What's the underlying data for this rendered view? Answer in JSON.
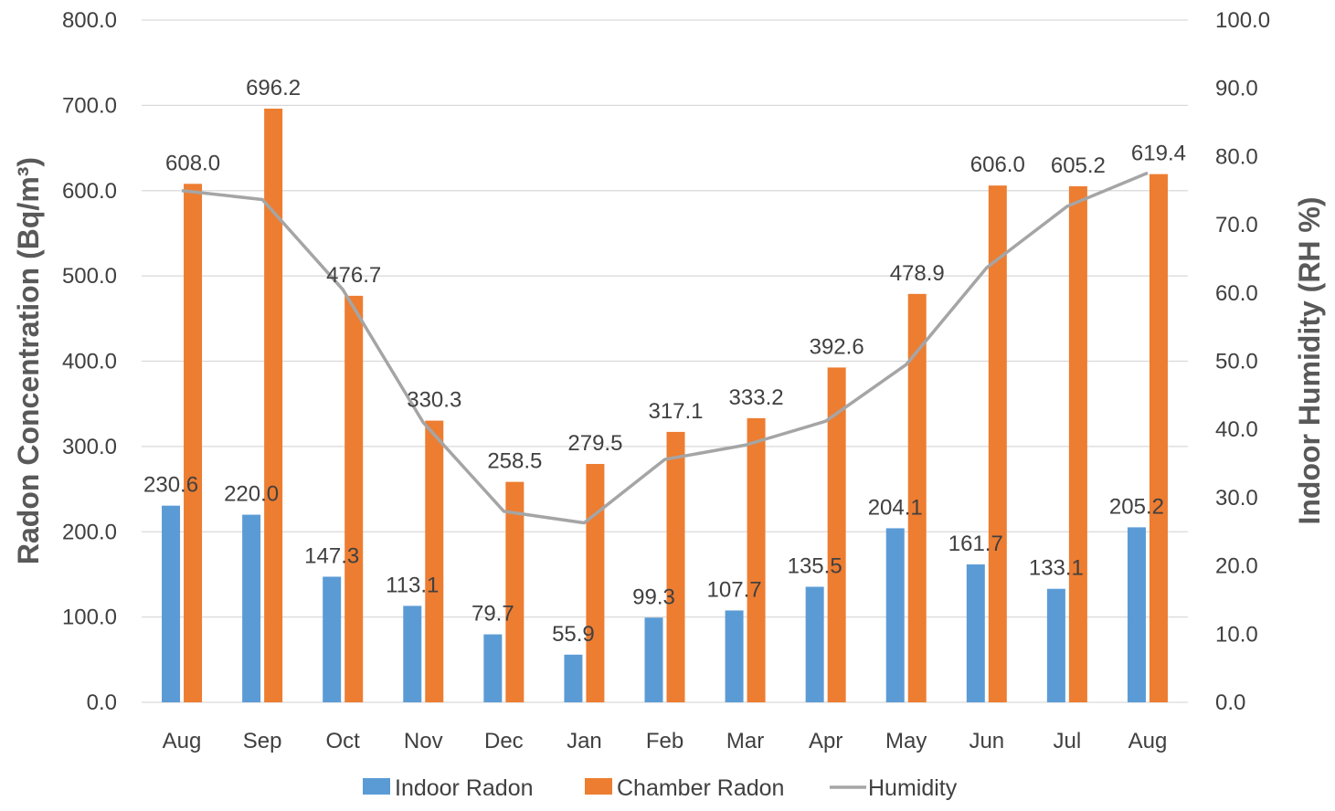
{
  "chart_data": {
    "type": "bar",
    "categories": [
      "Aug",
      "Sep",
      "Oct",
      "Nov",
      "Dec",
      "Jan",
      "Feb",
      "Mar",
      "Apr",
      "May",
      "Jun",
      "Jul",
      "Aug"
    ],
    "series": [
      {
        "name": "Indoor Radon",
        "type": "bar",
        "axis": "left",
        "color": "#5b9bd5",
        "values": [
          230.6,
          220.0,
          147.3,
          113.1,
          79.7,
          55.9,
          99.3,
          107.7,
          135.5,
          204.1,
          161.7,
          133.1,
          205.2
        ],
        "labels": [
          "230.6",
          "220.0",
          "147.3",
          "113.1",
          "79.7",
          "55.9",
          "99.3",
          "107.7",
          "135.5",
          "204.1",
          "161.7",
          "133.1",
          "205.2"
        ]
      },
      {
        "name": "Chamber Radon",
        "type": "bar",
        "axis": "left",
        "color": "#ed7d31",
        "values": [
          608.0,
          696.2,
          476.7,
          330.3,
          258.5,
          279.5,
          317.1,
          333.2,
          392.6,
          478.9,
          606.0,
          605.2,
          619.4
        ],
        "labels": [
          "608.0",
          "696.2",
          "476.7",
          "330.3",
          "258.5",
          "279.5",
          "317.1",
          "333.2",
          "392.6",
          "478.9",
          "606.0",
          "605.2",
          "619.4"
        ]
      },
      {
        "name": "Humidity",
        "type": "line",
        "axis": "right",
        "color": "#a5a5a5",
        "values": [
          75.0,
          73.7,
          60.5,
          41.0,
          28.0,
          26.3,
          35.6,
          37.7,
          41.2,
          49.5,
          63.7,
          72.7,
          77.6
        ]
      }
    ],
    "ylabel": "Radon Concentration (Bq/m³)",
    "y2label": "Indoor Humidity (RH %)",
    "ylim": [
      0,
      800
    ],
    "y2lim": [
      0,
      100
    ],
    "yticks": [
      "0.0",
      "100.0",
      "200.0",
      "300.0",
      "400.0",
      "500.0",
      "600.0",
      "700.0",
      "800.0"
    ],
    "y2ticks": [
      "0.0",
      "10.0",
      "20.0",
      "30.0",
      "40.0",
      "50.0",
      "60.0",
      "70.0",
      "80.0",
      "90.0",
      "100.0"
    ],
    "grid": true,
    "legend": "bottom",
    "grid_color": "#d9d9d9"
  }
}
